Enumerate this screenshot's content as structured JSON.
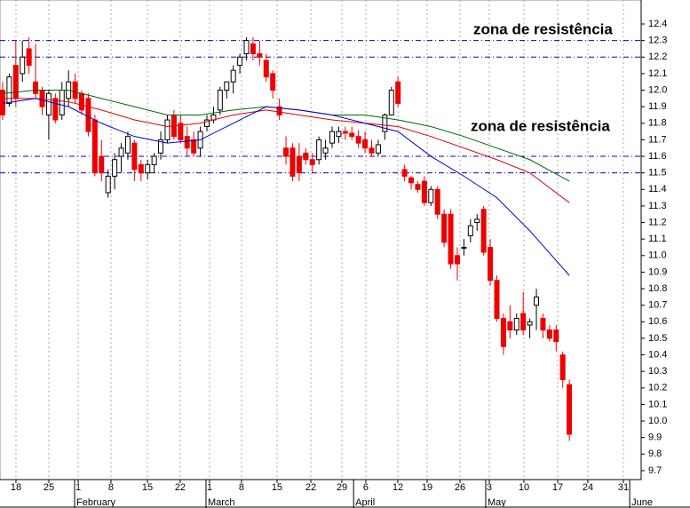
{
  "chart_data": {
    "type": "candlestick",
    "annotations": [
      "zona de resistência",
      "zona de resistência"
    ],
    "ylim": [
      9.646,
      12.545
    ],
    "yticks": [
      {
        "value": 12.4,
        "label": "12.4"
      },
      {
        "value": 12.3,
        "label": "12.3"
      },
      {
        "value": 12.2,
        "label": "12.2"
      },
      {
        "value": 12.1,
        "label": "12.1"
      },
      {
        "value": 12.0,
        "label": "12.0"
      },
      {
        "value": 11.9,
        "label": "11.9"
      },
      {
        "value": 11.8,
        "label": "11.8"
      },
      {
        "value": 11.7,
        "label": "11.7"
      },
      {
        "value": 11.6,
        "label": "11.6"
      },
      {
        "value": 11.5,
        "label": "11.5"
      },
      {
        "value": 11.4,
        "label": "11.4"
      },
      {
        "value": 11.3,
        "label": "11.3"
      },
      {
        "value": 11.2,
        "label": "11.2"
      },
      {
        "value": 11.1,
        "label": "11.1"
      },
      {
        "value": 11.0,
        "label": "11.0"
      },
      {
        "value": 10.9,
        "label": "10.9"
      },
      {
        "value": 10.8,
        "label": "10.8"
      },
      {
        "value": 10.7,
        "label": "10.7"
      },
      {
        "value": 10.6,
        "label": "10.6"
      },
      {
        "value": 10.5,
        "label": "10.5"
      },
      {
        "value": 10.4,
        "label": "10.4"
      },
      {
        "value": 10.3,
        "label": "10.3"
      },
      {
        "value": 10.2,
        "label": "10.2"
      },
      {
        "value": 10.1,
        "label": "10.1"
      },
      {
        "value": 10.0,
        "label": "10.0"
      },
      {
        "value": 9.9,
        "label": "9.9"
      },
      {
        "value": 9.8,
        "label": "9.8"
      },
      {
        "value": 9.7,
        "label": "9.7"
      }
    ],
    "xlim": [
      -0.4,
      96.9
    ],
    "xticks": [
      {
        "value": 2.02,
        "label": "18"
      },
      {
        "value": 7.01,
        "label": "25"
      },
      {
        "value": 11.46,
        "label": "1"
      },
      {
        "value": 16.44,
        "label": "8"
      },
      {
        "value": 21.97,
        "label": "15"
      },
      {
        "value": 26.95,
        "label": "22"
      },
      {
        "value": 31.4,
        "label": "1"
      },
      {
        "value": 36.25,
        "label": "8"
      },
      {
        "value": 41.64,
        "label": "15"
      },
      {
        "value": 46.77,
        "label": "22"
      },
      {
        "value": 51.48,
        "label": "29"
      },
      {
        "value": 55.12,
        "label": "6"
      },
      {
        "value": 59.97,
        "label": "12"
      },
      {
        "value": 64.42,
        "label": "19"
      },
      {
        "value": 69.41,
        "label": "26"
      },
      {
        "value": 73.85,
        "label": "3"
      },
      {
        "value": 79.11,
        "label": "10"
      },
      {
        "value": 84.23,
        "label": "17"
      },
      {
        "value": 88.81,
        "label": "24"
      },
      {
        "value": 94.2,
        "label": "31"
      }
    ],
    "months": [
      {
        "value": 11.46,
        "label": "February"
      },
      {
        "value": 31.4,
        "label": "March"
      },
      {
        "value": 53.8,
        "label": "April"
      },
      {
        "value": 73.85,
        "label": "May"
      },
      {
        "value": 95.7,
        "label": "June"
      }
    ],
    "grid": true,
    "resistance_levels": [
      12.3,
      12.2,
      11.6,
      11.5
    ],
    "resistance_color": "#0000cc",
    "up_color": "#ffffff",
    "down_color": "#ee0000",
    "open": [
      12.0,
      11.92,
      12.15,
      12.1,
      12.25,
      12.05,
      12.0,
      11.85,
      11.95,
      11.85,
      11.95,
      12.05,
      11.98,
      11.95,
      11.82,
      11.6,
      11.38,
      11.48,
      11.6,
      11.62,
      11.68,
      11.55,
      11.5,
      11.55,
      11.62,
      11.7,
      11.85,
      11.8,
      11.72,
      11.7,
      11.65,
      11.78,
      11.82,
      11.88,
      12.0,
      12.05,
      12.15,
      12.22,
      12.28,
      12.22,
      12.18,
      12.1,
      11.9,
      11.65,
      11.65,
      11.6,
      11.62,
      11.58,
      11.58,
      11.62,
      11.68,
      11.72,
      11.75,
      11.74,
      11.72,
      11.7,
      11.65,
      11.62,
      11.75,
      11.85,
      12.05,
      11.52,
      11.47,
      11.43,
      11.45,
      11.32,
      11.4,
      11.25,
      11.25,
      11.0,
      11.05,
      11.12,
      11.2,
      11.28,
      11.05,
      10.85,
      10.62,
      10.6,
      10.55,
      10.65,
      10.58,
      10.7,
      10.62,
      10.55,
      10.55,
      10.4,
      10.22
    ],
    "high": [
      12.05,
      12.1,
      12.3,
      12.3,
      12.32,
      12.28,
      12.02,
      12.0,
      11.98,
      12.05,
      12.12,
      12.1,
      12.0,
      11.98,
      11.85,
      11.7,
      11.52,
      11.62,
      11.68,
      11.75,
      11.7,
      11.58,
      11.58,
      11.62,
      11.75,
      11.85,
      11.88,
      11.85,
      11.78,
      11.75,
      11.78,
      11.85,
      11.9,
      12.02,
      12.05,
      12.15,
      12.22,
      12.32,
      12.32,
      12.3,
      12.22,
      12.12,
      11.95,
      11.72,
      11.68,
      11.68,
      11.65,
      11.62,
      11.72,
      11.7,
      11.78,
      11.78,
      11.78,
      11.78,
      11.76,
      11.75,
      11.7,
      11.7,
      11.86,
      12.02,
      12.08,
      11.55,
      11.48,
      11.45,
      11.48,
      11.42,
      11.42,
      11.28,
      11.28,
      11.05,
      11.1,
      11.22,
      11.25,
      11.3,
      11.1,
      10.88,
      10.65,
      10.7,
      10.65,
      10.78,
      10.62,
      10.8,
      10.65,
      10.58,
      10.58,
      10.42,
      10.25
    ],
    "low": [
      11.82,
      11.9,
      11.9,
      12.05,
      12.1,
      11.95,
      11.85,
      11.7,
      11.8,
      11.82,
      11.9,
      11.92,
      11.85,
      11.72,
      11.48,
      11.45,
      11.35,
      11.4,
      11.5,
      11.58,
      11.45,
      11.45,
      11.46,
      11.5,
      11.58,
      11.68,
      11.7,
      11.68,
      11.6,
      11.6,
      11.6,
      11.75,
      11.8,
      11.85,
      11.95,
      11.98,
      12.1,
      12.18,
      12.18,
      12.15,
      12.05,
      11.95,
      11.82,
      11.55,
      11.45,
      11.45,
      11.55,
      11.5,
      11.55,
      11.58,
      11.65,
      11.68,
      11.7,
      11.7,
      11.65,
      11.62,
      11.6,
      11.6,
      11.7,
      11.85,
      11.9,
      11.45,
      11.4,
      11.38,
      11.3,
      11.3,
      11.22,
      11.05,
      10.92,
      10.85,
      11.0,
      11.08,
      11.15,
      11.0,
      10.82,
      10.6,
      10.4,
      10.5,
      10.52,
      10.52,
      10.5,
      10.55,
      10.5,
      10.48,
      10.42,
      10.2,
      9.88
    ],
    "close": [
      11.85,
      12.08,
      11.95,
      12.2,
      12.15,
      11.98,
      11.9,
      11.98,
      11.82,
      12.0,
      12.05,
      11.95,
      11.88,
      11.75,
      11.5,
      11.5,
      11.48,
      11.58,
      11.65,
      11.72,
      11.52,
      11.5,
      11.55,
      11.6,
      11.7,
      11.82,
      11.72,
      11.7,
      11.65,
      11.62,
      11.75,
      11.82,
      11.85,
      12.0,
      12.05,
      12.12,
      12.2,
      12.3,
      12.22,
      12.2,
      12.08,
      12.0,
      11.85,
      11.6,
      11.48,
      11.5,
      11.58,
      11.55,
      11.7,
      11.65,
      11.75,
      11.75,
      11.74,
      11.72,
      11.68,
      11.65,
      11.62,
      11.67,
      11.85,
      12.0,
      11.92,
      11.48,
      11.44,
      11.4,
      11.32,
      11.4,
      11.25,
      11.08,
      10.95,
      10.95,
      11.05,
      11.18,
      11.22,
      11.02,
      10.85,
      10.62,
      10.45,
      10.55,
      10.62,
      10.55,
      10.6,
      10.75,
      10.55,
      10.5,
      10.48,
      10.25,
      9.92
    ],
    "series": [
      {
        "color": "#006600",
        "x": [
          0,
          5,
          10,
          15,
          20,
          25,
          30,
          35,
          40,
          45,
          50,
          55,
          60,
          65,
          70,
          75,
          80,
          86
        ],
        "values": [
          11.98,
          12.0,
          12.0,
          11.95,
          11.9,
          11.85,
          11.85,
          11.88,
          11.9,
          11.88,
          11.85,
          11.85,
          11.82,
          11.78,
          11.72,
          11.65,
          11.58,
          11.45
        ]
      },
      {
        "color": "#dd0000",
        "x": [
          0,
          5,
          10,
          15,
          20,
          25,
          30,
          35,
          40,
          45,
          50,
          55,
          60,
          65,
          70,
          75,
          80,
          86
        ],
        "values": [
          11.95,
          11.95,
          11.93,
          11.88,
          11.82,
          11.78,
          11.8,
          11.85,
          11.88,
          11.85,
          11.82,
          11.8,
          11.78,
          11.72,
          11.65,
          11.58,
          11.5,
          11.32
        ]
      },
      {
        "color": "#0000cc",
        "x": [
          0,
          5,
          10,
          15,
          20,
          25,
          30,
          35,
          40,
          45,
          50,
          55,
          60,
          65,
          70,
          75,
          80,
          86
        ],
        "values": [
          11.92,
          11.95,
          11.9,
          11.8,
          11.72,
          11.68,
          11.7,
          11.8,
          11.9,
          11.88,
          11.85,
          11.8,
          11.75,
          11.6,
          11.48,
          11.35,
          11.15,
          10.88
        ]
      }
    ]
  }
}
